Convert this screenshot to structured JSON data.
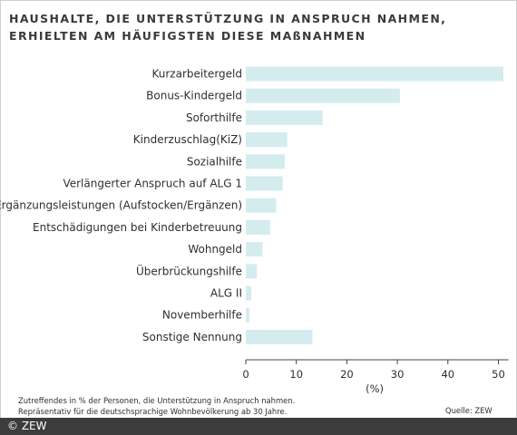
{
  "title_lines": [
    "HAUSHALTE, DIE UNTERSTÜTZUNG IN ANSPRUCH NAHMEN,",
    "ERHIELTEN AM HÄUFIGSTEN DIESE MAßNAHMEN"
  ],
  "notes": [
    "Zutreffendes in % der Personen, die Unterstützung in Anspruch nahmen.",
    "Repräsentativ für die deutschsprachige Wohnbevölkerung ab 30 Jahre."
  ],
  "source": "Quelle: ZEW",
  "copyright": "© ZEW",
  "colors": {
    "bar": "#d4ecee",
    "axis": "#444444",
    "text": "#2f2f2f",
    "copyright_bg": "#3c3c3c"
  },
  "chart_data": {
    "type": "bar",
    "orientation": "horizontal",
    "categories": [
      "Kurzarbeitergeld",
      "Bonus-Kindergeld",
      "Soforthilfe",
      "Kinderzuschlag(KiZ)",
      "Sozialhilfe",
      "Verlängerter Anspruch auf ALG 1",
      "Ergänzungsleistungen (Aufstocken/Ergänzen)",
      "Entschädigungen bei Kinderbetreuung",
      "Wohngeld",
      "Überbrückungshilfe",
      "ALG II",
      "Novemberhilfe",
      "Sonstige Nennung"
    ],
    "values": [
      51,
      30.5,
      15.2,
      8.2,
      7.7,
      7.3,
      6,
      4.8,
      3.3,
      2.2,
      1.1,
      0.7,
      13.2
    ],
    "xlabel": "(%)",
    "xlim": [
      0,
      52
    ],
    "xticks": [
      0,
      10,
      20,
      30,
      40,
      50
    ],
    "grid": false
  }
}
